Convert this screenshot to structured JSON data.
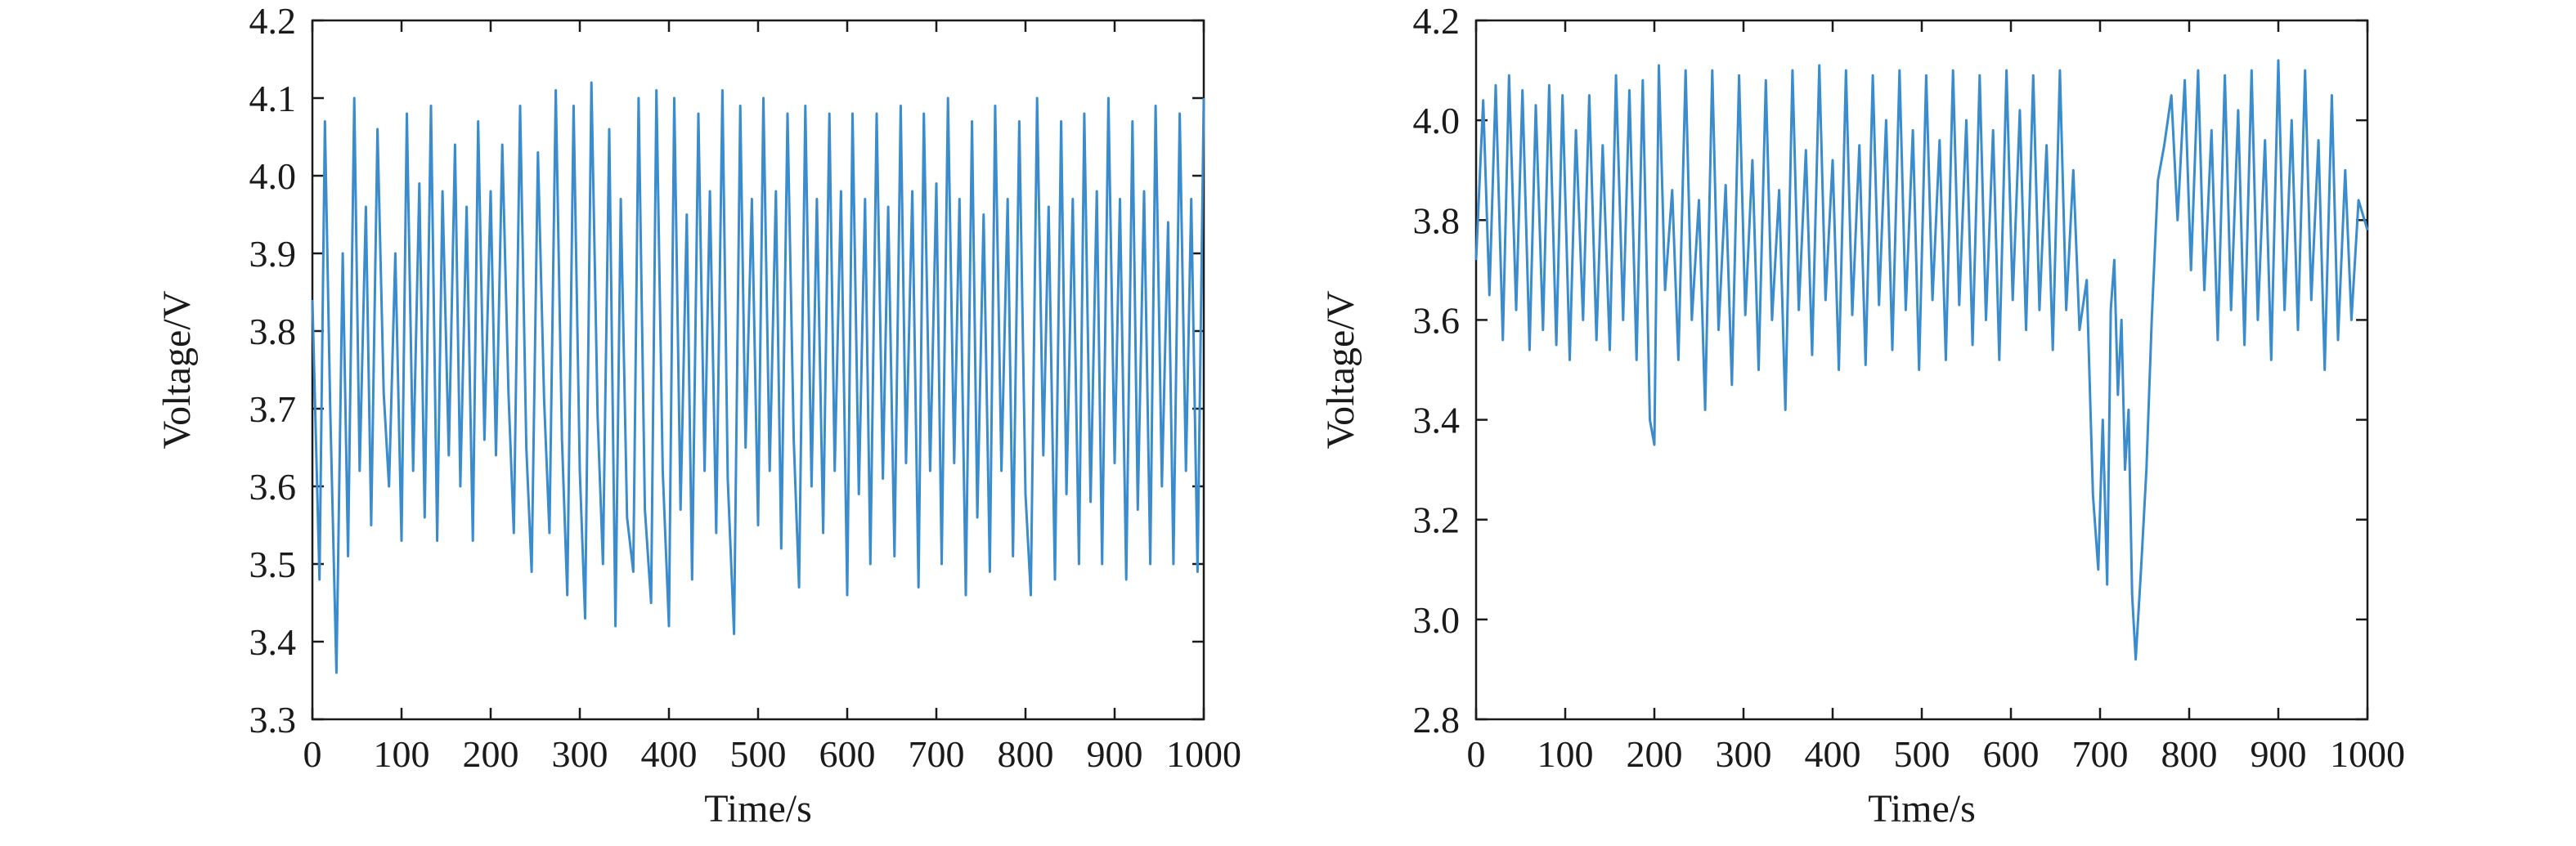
{
  "chart_data": [
    {
      "type": "line",
      "xlabel": "Time/s",
      "ylabel": "Voltage/V",
      "xlim": [
        0,
        1000
      ],
      "ylim": [
        3.3,
        4.2
      ],
      "xticks": [
        "0",
        "100",
        "200",
        "300",
        "400",
        "500",
        "600",
        "700",
        "800",
        "900",
        "1000"
      ],
      "yticks": [
        "3.3",
        "3.4",
        "3.5",
        "3.6",
        "3.7",
        "3.8",
        "3.9",
        "4.0",
        "4.1",
        "4.2"
      ],
      "grid": false,
      "series": [
        {
          "color": "#3a8ccc",
          "x": [
            0,
            8,
            14,
            20,
            27,
            34,
            40,
            47,
            53,
            60,
            66,
            73,
            80,
            86,
            93,
            100,
            106,
            113,
            120,
            126,
            133,
            140,
            146,
            153,
            160,
            166,
            173,
            180,
            186,
            193,
            200,
            206,
            213,
            220,
            226,
            233,
            240,
            246,
            253,
            260,
            266,
            273,
            280,
            286,
            293,
            300,
            306,
            313,
            320,
            326,
            333,
            340,
            346,
            353,
            360,
            366,
            373,
            380,
            386,
            393,
            400,
            406,
            413,
            420,
            426,
            433,
            440,
            446,
            453,
            460,
            466,
            473,
            480,
            486,
            493,
            500,
            506,
            513,
            520,
            526,
            533,
            540,
            546,
            553,
            560,
            566,
            573,
            580,
            586,
            593,
            600,
            606,
            613,
            620,
            626,
            633,
            640,
            646,
            653,
            660,
            666,
            673,
            680,
            686,
            693,
            700,
            706,
            713,
            720,
            726,
            733,
            740,
            746,
            753,
            760,
            766,
            773,
            780,
            786,
            793,
            800,
            806,
            813,
            820,
            826,
            833,
            840,
            846,
            853,
            860,
            866,
            873,
            880,
            886,
            893,
            900,
            906,
            913,
            920,
            926,
            933,
            940,
            946,
            953,
            960,
            966,
            973,
            980,
            986,
            993,
            1000
          ],
          "y": [
            3.84,
            3.48,
            4.07,
            3.7,
            3.36,
            3.9,
            3.51,
            4.1,
            3.62,
            3.96,
            3.55,
            4.06,
            3.72,
            3.6,
            3.9,
            3.53,
            4.08,
            3.62,
            3.99,
            3.56,
            4.09,
            3.53,
            3.98,
            3.64,
            4.04,
            3.6,
            3.96,
            3.53,
            4.07,
            3.66,
            3.98,
            3.64,
            4.04,
            3.72,
            3.54,
            4.09,
            3.65,
            3.49,
            4.03,
            3.71,
            3.54,
            4.11,
            3.66,
            3.46,
            4.09,
            3.62,
            3.43,
            4.12,
            3.69,
            3.5,
            4.06,
            3.42,
            3.97,
            3.56,
            3.49,
            4.1,
            3.57,
            3.45,
            4.11,
            3.62,
            3.42,
            4.1,
            3.57,
            3.95,
            3.48,
            4.08,
            3.62,
            3.98,
            3.54,
            4.11,
            3.61,
            3.41,
            4.09,
            3.65,
            3.97,
            3.55,
            4.1,
            3.62,
            3.98,
            3.52,
            4.08,
            3.66,
            3.47,
            4.09,
            3.6,
            3.97,
            3.54,
            4.08,
            3.62,
            3.98,
            3.46,
            4.08,
            3.59,
            3.97,
            3.5,
            4.08,
            3.61,
            3.96,
            3.51,
            4.09,
            3.63,
            3.98,
            3.47,
            4.08,
            3.62,
            3.99,
            3.5,
            4.1,
            3.63,
            3.97,
            3.46,
            4.07,
            3.56,
            3.95,
            3.49,
            4.09,
            3.62,
            3.97,
            3.51,
            4.07,
            3.59,
            3.46,
            4.1,
            3.64,
            3.96,
            3.48,
            4.07,
            3.59,
            3.97,
            3.5,
            4.08,
            3.58,
            3.98,
            3.5,
            4.1,
            3.63,
            3.97,
            3.48,
            4.07,
            3.57,
            3.98,
            3.5,
            4.09,
            3.6,
            3.94,
            3.5,
            4.08,
            3.62,
            3.97,
            3.49,
            4.1
          ]
        }
      ]
    },
    {
      "type": "line",
      "xlabel": "Time/s",
      "ylabel": "Voltage/V",
      "xlim": [
        0,
        1000
      ],
      "ylim": [
        2.8,
        4.2
      ],
      "xticks": [
        "0",
        "100",
        "200",
        "300",
        "400",
        "500",
        "600",
        "700",
        "800",
        "900",
        "1000"
      ],
      "yticks": [
        "2.8",
        "3.0",
        "3.2",
        "3.4",
        "3.6",
        "3.8",
        "4.0",
        "4.2"
      ],
      "grid": false,
      "series": [
        {
          "color": "#3a8ccc",
          "x": [
            0,
            8,
            15,
            22,
            30,
            37,
            45,
            52,
            60,
            67,
            75,
            82,
            90,
            97,
            105,
            112,
            120,
            127,
            135,
            142,
            150,
            157,
            165,
            172,
            180,
            187,
            195,
            200,
            205,
            212,
            220,
            227,
            235,
            242,
            250,
            257,
            265,
            272,
            280,
            287,
            295,
            302,
            310,
            317,
            325,
            332,
            340,
            347,
            355,
            362,
            370,
            377,
            385,
            392,
            400,
            407,
            415,
            422,
            430,
            437,
            445,
            452,
            460,
            467,
            475,
            482,
            490,
            497,
            505,
            512,
            520,
            527,
            535,
            542,
            550,
            557,
            565,
            572,
            580,
            587,
            595,
            602,
            610,
            617,
            625,
            632,
            640,
            647,
            655,
            662,
            670,
            677,
            685,
            692,
            698,
            703,
            708,
            712,
            716,
            720,
            724,
            728,
            732,
            736,
            740,
            746,
            752,
            758,
            765,
            772,
            780,
            787,
            795,
            802,
            810,
            817,
            825,
            832,
            840,
            847,
            855,
            862,
            870,
            877,
            885,
            892,
            900,
            907,
            915,
            922,
            930,
            937,
            945,
            952,
            960,
            967,
            975,
            982,
            990,
            1000
          ],
          "y": [
            3.72,
            4.04,
            3.65,
            4.07,
            3.56,
            4.09,
            3.62,
            4.06,
            3.54,
            4.03,
            3.58,
            4.07,
            3.55,
            4.05,
            3.52,
            3.98,
            3.6,
            4.05,
            3.56,
            3.95,
            3.54,
            4.09,
            3.6,
            4.06,
            3.52,
            4.08,
            3.4,
            3.35,
            4.11,
            3.66,
            3.86,
            3.52,
            4.1,
            3.6,
            3.84,
            3.42,
            4.1,
            3.58,
            3.87,
            3.47,
            4.09,
            3.61,
            3.92,
            3.5,
            4.08,
            3.6,
            3.86,
            3.42,
            4.1,
            3.62,
            3.94,
            3.53,
            4.11,
            3.64,
            3.92,
            3.5,
            4.1,
            3.61,
            3.95,
            3.51,
            4.09,
            3.63,
            4.0,
            3.54,
            4.1,
            3.62,
            3.98,
            3.5,
            4.09,
            3.64,
            3.96,
            3.52,
            4.1,
            3.63,
            4.0,
            3.55,
            4.09,
            3.6,
            3.98,
            3.52,
            4.1,
            3.64,
            4.02,
            3.58,
            4.09,
            3.62,
            3.95,
            3.54,
            4.1,
            3.62,
            3.9,
            3.58,
            3.68,
            3.25,
            3.1,
            3.4,
            3.07,
            3.62,
            3.72,
            3.45,
            3.6,
            3.3,
            3.42,
            3.05,
            2.92,
            3.1,
            3.3,
            3.6,
            3.88,
            3.95,
            4.05,
            3.8,
            4.08,
            3.7,
            4.1,
            3.66,
            3.98,
            3.56,
            4.09,
            3.62,
            4.02,
            3.55,
            4.1,
            3.6,
            3.96,
            3.52,
            4.12,
            3.62,
            4.0,
            3.58,
            4.1,
            3.64,
            3.96,
            3.5,
            4.05,
            3.56,
            3.9,
            3.6,
            3.84,
            3.78
          ]
        }
      ]
    }
  ]
}
